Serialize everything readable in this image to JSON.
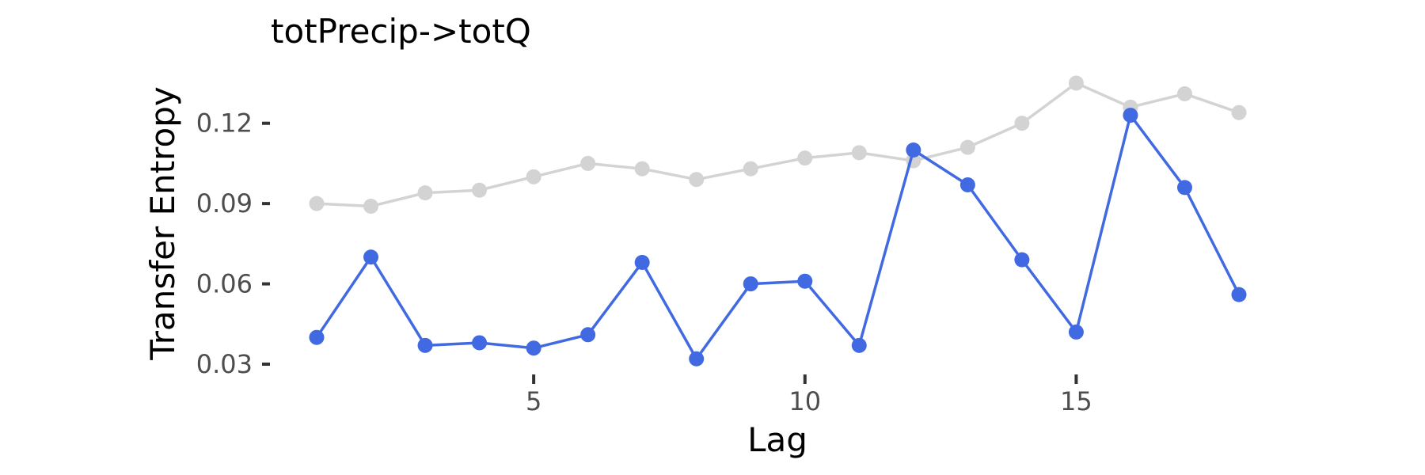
{
  "chart_data": {
    "type": "line",
    "title": "totPrecip->totQ",
    "xlabel": "Lag",
    "ylabel": "Transfer Entropy",
    "x": [
      1,
      2,
      3,
      4,
      5,
      6,
      7,
      8,
      9,
      10,
      11,
      12,
      13,
      14,
      15,
      16,
      17,
      18
    ],
    "xlim": [
      1,
      18
    ],
    "ylim": [
      0.03,
      0.135
    ],
    "xticks": [
      5,
      10,
      15
    ],
    "yticks": [
      0.03,
      0.06,
      0.09,
      0.12
    ],
    "xtick_labels": [
      "5",
      "10",
      "15"
    ],
    "ytick_labels": [
      "0.03",
      "0.06",
      "0.09",
      "0.12"
    ],
    "grid": false,
    "legend": "none",
    "series": [
      {
        "color": "#d3d3d3",
        "values": [
          0.09,
          0.089,
          0.094,
          0.095,
          0.1,
          0.105,
          0.103,
          0.099,
          0.103,
          0.107,
          0.109,
          0.106,
          0.111,
          0.12,
          0.135,
          0.126,
          0.131,
          0.124
        ]
      },
      {
        "color": "#4169e1",
        "values": [
          0.04,
          0.07,
          0.037,
          0.038,
          0.036,
          0.041,
          0.068,
          0.032,
          0.06,
          0.061,
          0.037,
          0.11,
          0.097,
          0.069,
          0.042,
          0.123,
          0.096,
          0.056
        ]
      }
    ]
  }
}
